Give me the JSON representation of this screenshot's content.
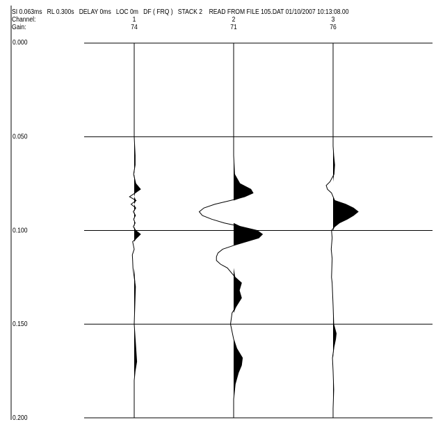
{
  "header": {
    "params_line": "SI 0.063ms   RL 0.300s   DELAY 0ms   LOC 0m   DF ( FRQ )   STACK 2    READ FROM FILE 105.DAT 01/10/2007 10:13:08.00",
    "channel_label": "Channel:",
    "gain_label": "Gain:"
  },
  "chart_data": {
    "type": "line",
    "title": "",
    "xlabel": "",
    "ylabel": "",
    "y_unit": "s",
    "ylim": [
      0.0,
      0.2
    ],
    "y_ticks": [
      "0.000",
      "0.050",
      "0.100",
      "0.150",
      "0.200"
    ],
    "grid": true,
    "series": [
      {
        "channel": "1",
        "gain": "74",
        "t": [
          0.0,
          0.05,
          0.06,
          0.065,
          0.07,
          0.075,
          0.078,
          0.08,
          0.082,
          0.084,
          0.086,
          0.088,
          0.09,
          0.092,
          0.094,
          0.096,
          0.098,
          0.1,
          0.102,
          0.104,
          0.106,
          0.11,
          0.113,
          0.116,
          0.12,
          0.13,
          0.14,
          0.15,
          0.16,
          0.165,
          0.17,
          0.175,
          0.18,
          0.19,
          0.2
        ],
        "amplitude": [
          0.0,
          0.0,
          0.03,
          0.03,
          -0.02,
          0.05,
          0.2,
          0.03,
          -0.15,
          0.06,
          -0.1,
          0.05,
          -0.03,
          0.04,
          -0.02,
          0.03,
          -0.03,
          0.05,
          0.2,
          0.08,
          -0.05,
          0.0,
          -0.06,
          -0.05,
          -0.04,
          0.04,
          0.02,
          0.0,
          0.04,
          0.06,
          0.08,
          0.03,
          0.0,
          0.0,
          0.0
        ]
      },
      {
        "channel": "2",
        "gain": "71",
        "t": [
          0.0,
          0.06,
          0.07,
          0.075,
          0.078,
          0.08,
          0.082,
          0.084,
          0.086,
          0.088,
          0.09,
          0.092,
          0.094,
          0.096,
          0.098,
          0.1,
          0.102,
          0.104,
          0.106,
          0.108,
          0.11,
          0.112,
          0.114,
          0.116,
          0.118,
          0.12,
          0.125,
          0.128,
          0.132,
          0.136,
          0.14,
          0.144,
          0.15,
          0.158,
          0.163,
          0.168,
          0.172,
          0.176,
          0.182,
          0.19,
          0.2
        ],
        "amplitude": [
          0.0,
          0.0,
          0.03,
          0.2,
          0.55,
          0.62,
          0.35,
          -0.1,
          -0.6,
          -0.95,
          -1.1,
          -1.0,
          -0.7,
          -0.3,
          0.25,
          0.75,
          0.92,
          0.8,
          0.4,
          0.0,
          -0.35,
          -0.5,
          -0.55,
          -0.55,
          -0.42,
          -0.2,
          0.05,
          0.25,
          0.18,
          0.25,
          0.1,
          -0.05,
          -0.1,
          0.0,
          0.1,
          0.28,
          0.25,
          0.15,
          0.05,
          0.0,
          0.0
        ]
      },
      {
        "channel": "3",
        "gain": "76",
        "t": [
          0.0,
          0.055,
          0.06,
          0.065,
          0.07,
          0.074,
          0.076,
          0.078,
          0.08,
          0.082,
          0.084,
          0.086,
          0.088,
          0.09,
          0.092,
          0.094,
          0.096,
          0.098,
          0.1,
          0.104,
          0.11,
          0.115,
          0.12,
          0.125,
          0.128,
          0.132,
          0.14,
          0.15,
          0.155,
          0.158,
          0.162,
          0.168,
          0.175,
          0.185,
          0.195,
          0.2
        ],
        "amplitude": [
          0.0,
          0.0,
          0.02,
          0.05,
          0.03,
          -0.1,
          -0.22,
          -0.18,
          -0.05,
          0.0,
          0.05,
          0.4,
          0.65,
          0.8,
          0.65,
          0.45,
          0.2,
          0.05,
          -0.05,
          -0.03,
          -0.06,
          -0.03,
          -0.04,
          -0.05,
          -0.03,
          -0.02,
          0.0,
          0.02,
          0.1,
          0.08,
          0.03,
          -0.02,
          0.0,
          0.02,
          0.0,
          0.0
        ]
      }
    ]
  }
}
